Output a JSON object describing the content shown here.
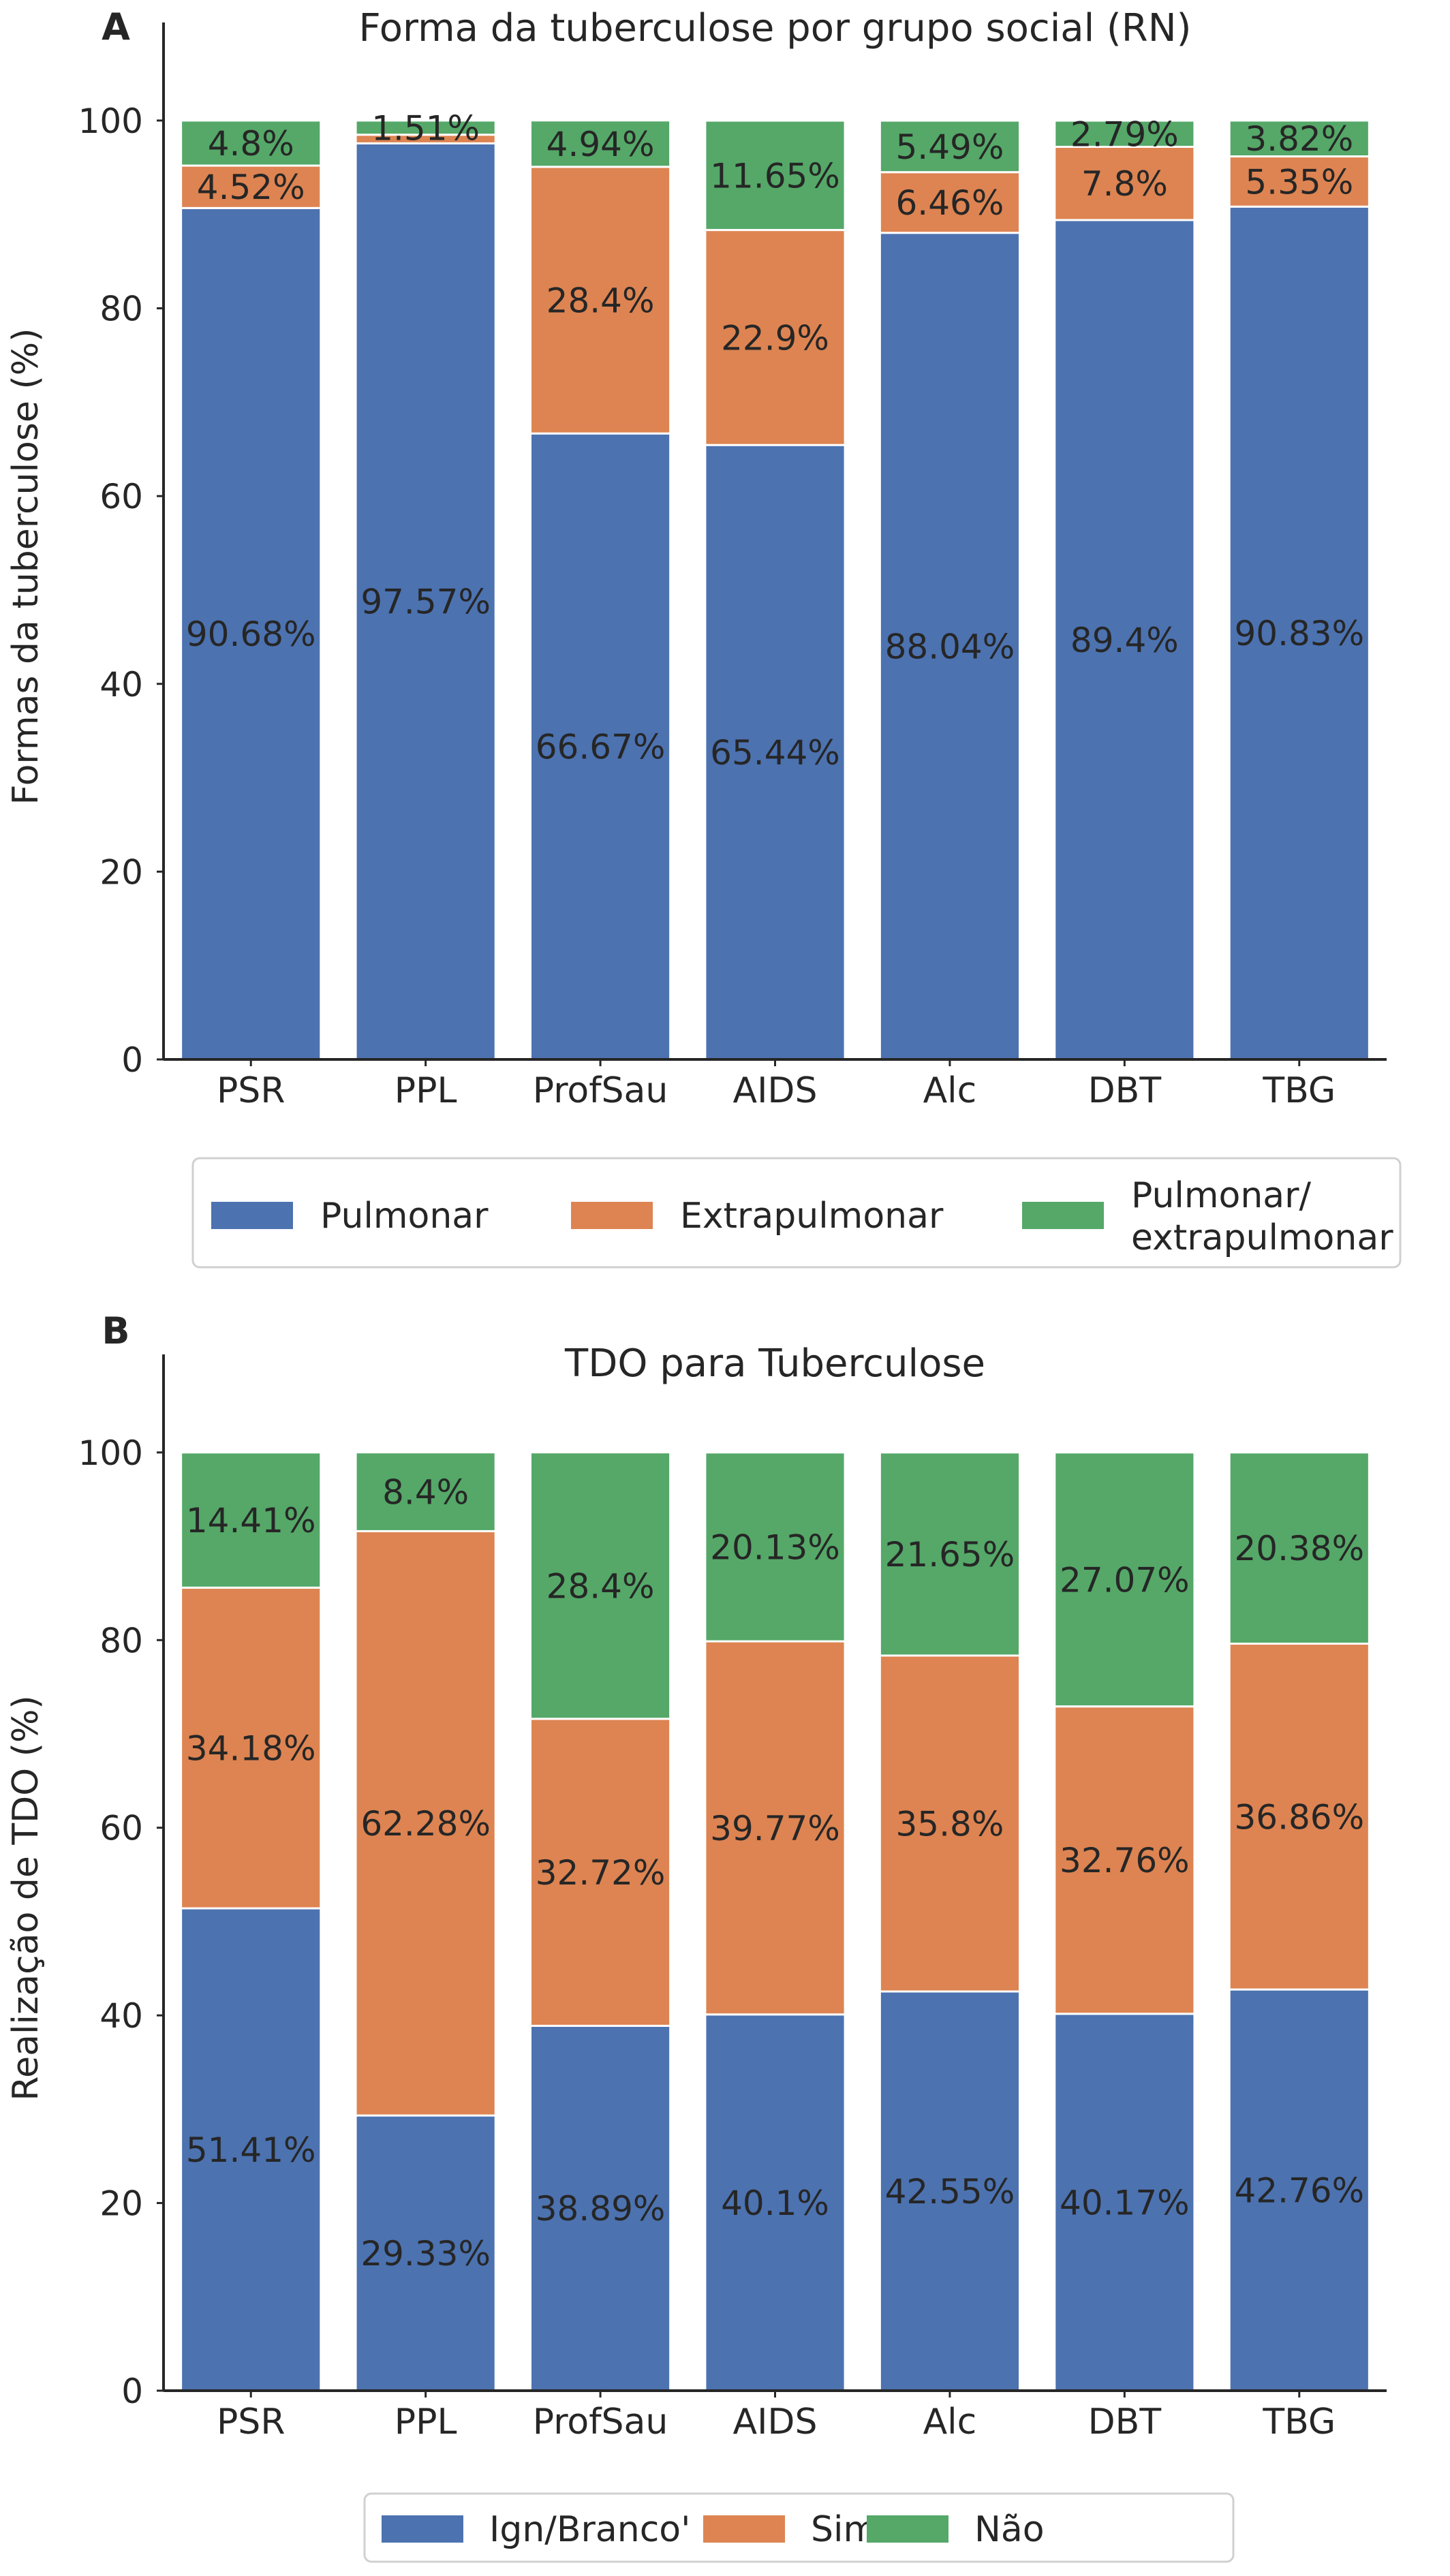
{
  "chart_data": [
    {
      "panel_label": "A",
      "type": "stacked-bar",
      "title": "Forma da tuberculose por grupo social (RN)",
      "xlabel": "",
      "ylabel": "Formas da tuberculose (%)",
      "ylim": [
        0,
        105
      ],
      "yticks": [
        0,
        20,
        40,
        60,
        80,
        100
      ],
      "categories": [
        "PSR",
        "PPL",
        "ProfSau",
        "AIDS",
        "Alc",
        "DBT",
        "TBG"
      ],
      "series": [
        {
          "name": "Pulmonar",
          "color": "#4c72b0",
          "values": [
            90.68,
            97.57,
            66.67,
            65.44,
            88.04,
            89.4,
            90.83
          ],
          "labels": [
            "90.68%",
            "97.57%",
            "66.67%",
            "65.44%",
            "88.04%",
            "89.4%",
            "90.83%"
          ]
        },
        {
          "name": "Extrapulmonar",
          "color": "#dd8452",
          "values": [
            4.52,
            0.92,
            28.4,
            22.9,
            6.46,
            7.8,
            5.35
          ],
          "labels": [
            "4.52%",
            "",
            "28.4%",
            "22.9%",
            "6.46%",
            "7.8%",
            "5.35%"
          ]
        },
        {
          "name": "Pulmonar/ extrapulmonar",
          "color": "#55a868",
          "values": [
            4.8,
            1.51,
            4.94,
            11.65,
            5.49,
            2.79,
            3.82
          ],
          "labels": [
            "4.8%",
            "1.51%",
            "4.94%",
            "11.65%",
            "5.49%",
            "2.79%",
            "3.82%"
          ]
        }
      ],
      "legend": {
        "placement": "bottom",
        "entries": [
          "Pulmonar",
          "Extrapulmonar",
          "Pulmonar/|extrapulmonar"
        ]
      },
      "grid": false
    },
    {
      "panel_label": "B",
      "type": "stacked-bar",
      "title": "TDO para Tuberculose",
      "xlabel": "",
      "ylabel": "Realização de TDO (%)",
      "ylim": [
        0,
        105
      ],
      "yticks": [
        0,
        20,
        40,
        60,
        80,
        100
      ],
      "categories": [
        "PSR",
        "PPL",
        "ProfSau",
        "AIDS",
        "Alc",
        "DBT",
        "TBG"
      ],
      "series": [
        {
          "name": "Ign/Branco'",
          "color": "#4c72b0",
          "values": [
            51.41,
            29.33,
            38.89,
            40.1,
            42.55,
            40.17,
            42.76
          ],
          "labels": [
            "51.41%",
            "29.33%",
            "38.89%",
            "40.1%",
            "42.55%",
            "40.17%",
            "42.76%"
          ]
        },
        {
          "name": "Sim",
          "color": "#dd8452",
          "values": [
            34.18,
            62.28,
            32.72,
            39.77,
            35.8,
            32.76,
            36.86
          ],
          "labels": [
            "34.18%",
            "62.28%",
            "32.72%",
            "39.77%",
            "35.8%",
            "32.76%",
            "36.86%"
          ]
        },
        {
          "name": "Não",
          "color": "#55a868",
          "values": [
            14.41,
            8.4,
            28.4,
            20.13,
            21.65,
            27.07,
            20.38
          ],
          "labels": [
            "14.41%",
            "8.4%",
            "28.4%",
            "20.13%",
            "21.65%",
            "27.07%",
            "20.38%"
          ]
        }
      ],
      "legend": {
        "placement": "bottom",
        "entries": [
          "Ign/Branco'",
          "Sim",
          "Não"
        ]
      },
      "grid": false
    }
  ]
}
